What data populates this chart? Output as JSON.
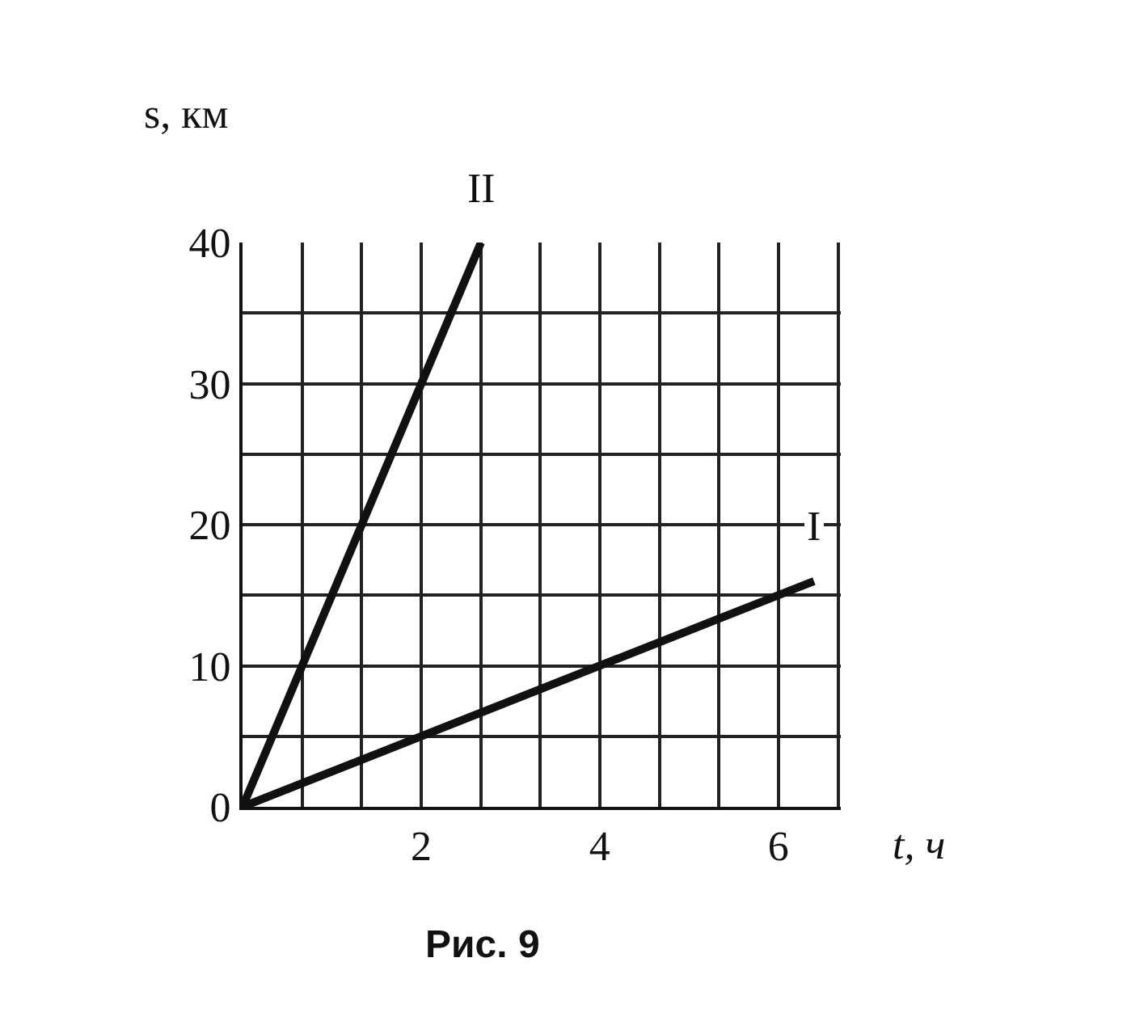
{
  "chart_data": {
    "type": "line",
    "xlabel": "t, ч",
    "ylabel": "s, км",
    "series": [
      {
        "name": "I",
        "color": "#111111",
        "x": [
          0,
          6.4
        ],
        "values": [
          0,
          16
        ]
      },
      {
        "name": "II",
        "color": "#111111",
        "x": [
          0,
          2.67
        ],
        "values": [
          0,
          40
        ]
      }
    ],
    "xlim": [
      0,
      6.7
    ],
    "ylim": [
      0,
      40
    ],
    "xticks": [
      {
        "value": 0,
        "label": null
      },
      {
        "value": 0.67,
        "label": null
      },
      {
        "value": 1.33,
        "label": null
      },
      2,
      {
        "value": 2.67,
        "label": null
      },
      {
        "value": 3.33,
        "label": null
      },
      4,
      {
        "value": 4.67,
        "label": null
      },
      {
        "value": 5.33,
        "label": null
      },
      6,
      {
        "value": 6.67,
        "label": null
      }
    ],
    "yticks": [
      0,
      {
        "value": 5,
        "label": null
      },
      10,
      {
        "value": 15,
        "label": null
      },
      20,
      {
        "value": 25,
        "label": null
      },
      30,
      {
        "value": 35,
        "label": null
      },
      40
    ],
    "grid": true,
    "legend": false,
    "marker": "none",
    "line_style": "solid",
    "annotations": [
      "Рис. 9"
    ]
  }
}
